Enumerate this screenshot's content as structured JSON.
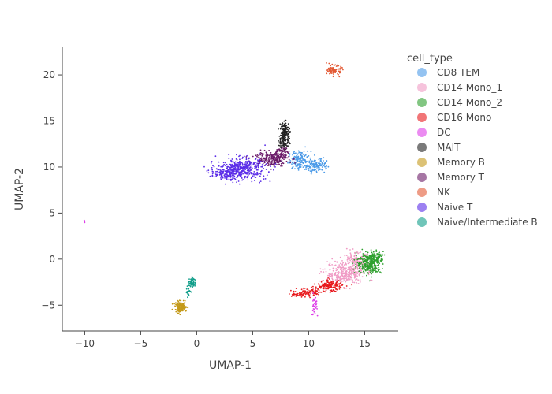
{
  "chart_data": {
    "type": "scatter",
    "xlabel": "UMAP-1",
    "ylabel": "UMAP-2",
    "xlim": [
      -12,
      18
    ],
    "ylim": [
      -7.8,
      23
    ],
    "xticks": [
      -10,
      -5,
      0,
      5,
      10,
      15
    ],
    "yticks": [
      -5,
      0,
      5,
      10,
      15,
      20
    ],
    "grid": false,
    "legend": {
      "title": "cell_type",
      "placement": "right"
    },
    "series": [
      {
        "name": "CD8 TEM",
        "color": "#4c9be8",
        "clusters": [
          {
            "cx": 9.2,
            "cy": 10.7,
            "sx": 0.5,
            "sy": 0.5,
            "n": 160
          },
          {
            "cx": 10.7,
            "cy": 10.2,
            "sx": 0.45,
            "sy": 0.4,
            "n": 120
          }
        ]
      },
      {
        "name": "CD14 Mono_1",
        "color": "#f09bc5",
        "clusters": [
          {
            "cx": 13.2,
            "cy": -1.6,
            "sx": 0.9,
            "sy": 0.6,
            "n": 330
          },
          {
            "cx": 14.3,
            "cy": -0.3,
            "sx": 0.6,
            "sy": 0.5,
            "n": 160
          }
        ]
      },
      {
        "name": "CD14 Mono_2",
        "color": "#2ea02e",
        "clusters": [
          {
            "cx": 15.4,
            "cy": -0.5,
            "sx": 0.55,
            "sy": 0.55,
            "n": 280
          },
          {
            "cx": 16.1,
            "cy": 0.2,
            "sx": 0.3,
            "sy": 0.3,
            "n": 80
          }
        ]
      },
      {
        "name": "CD16 Mono",
        "color": "#e8191c",
        "clusters": [
          {
            "cx": 11.9,
            "cy": -2.9,
            "sx": 0.55,
            "sy": 0.3,
            "n": 160
          },
          {
            "cx": 10.2,
            "cy": -3.6,
            "sx": 0.6,
            "sy": 0.25,
            "n": 90
          },
          {
            "cx": 9.0,
            "cy": -3.9,
            "sx": 0.4,
            "sy": 0.12,
            "n": 40
          }
        ]
      },
      {
        "name": "DC",
        "color": "#dd3ee8",
        "clusters": [
          {
            "cx": 10.5,
            "cy": -5.0,
            "sx": 0.12,
            "sy": 0.55,
            "n": 40
          },
          {
            "cx": -10.0,
            "cy": 4.1,
            "sx": 0.05,
            "sy": 0.08,
            "n": 6
          }
        ]
      },
      {
        "name": "MAIT",
        "color": "#222222",
        "clusters": [
          {
            "cx": 7.9,
            "cy": 14.0,
            "sx": 0.2,
            "sy": 0.45,
            "n": 110
          },
          {
            "cx": 7.8,
            "cy": 12.8,
            "sx": 0.25,
            "sy": 0.45,
            "n": 90
          }
        ]
      },
      {
        "name": "Memory B",
        "color": "#c49a1a",
        "clusters": [
          {
            "cx": -1.4,
            "cy": -5.2,
            "sx": 0.25,
            "sy": 0.28,
            "n": 160
          }
        ]
      },
      {
        "name": "Memory T",
        "color": "#6a1a68",
        "clusters": [
          {
            "cx": 6.6,
            "cy": 10.9,
            "sx": 0.8,
            "sy": 0.4,
            "n": 220
          },
          {
            "cx": 7.6,
            "cy": 11.6,
            "sx": 0.3,
            "sy": 0.3,
            "n": 60
          }
        ]
      },
      {
        "name": "NK",
        "color": "#e35a35",
        "clusters": [
          {
            "cx": 12.3,
            "cy": 20.5,
            "sx": 0.3,
            "sy": 0.25,
            "n": 100
          }
        ]
      },
      {
        "name": "Naive T",
        "color": "#5a2ce8",
        "clusters": [
          {
            "cx": 4.0,
            "cy": 9.8,
            "sx": 1.1,
            "sy": 0.6,
            "n": 420
          },
          {
            "cx": 2.5,
            "cy": 9.3,
            "sx": 0.6,
            "sy": 0.3,
            "n": 100
          }
        ]
      },
      {
        "name": "Naive/Intermediate B",
        "color": "#119e8a",
        "clusters": [
          {
            "cx": -0.4,
            "cy": -2.5,
            "sx": 0.15,
            "sy": 0.3,
            "n": 60
          },
          {
            "cx": -0.7,
            "cy": -3.5,
            "sx": 0.12,
            "sy": 0.25,
            "n": 20
          }
        ]
      }
    ]
  }
}
